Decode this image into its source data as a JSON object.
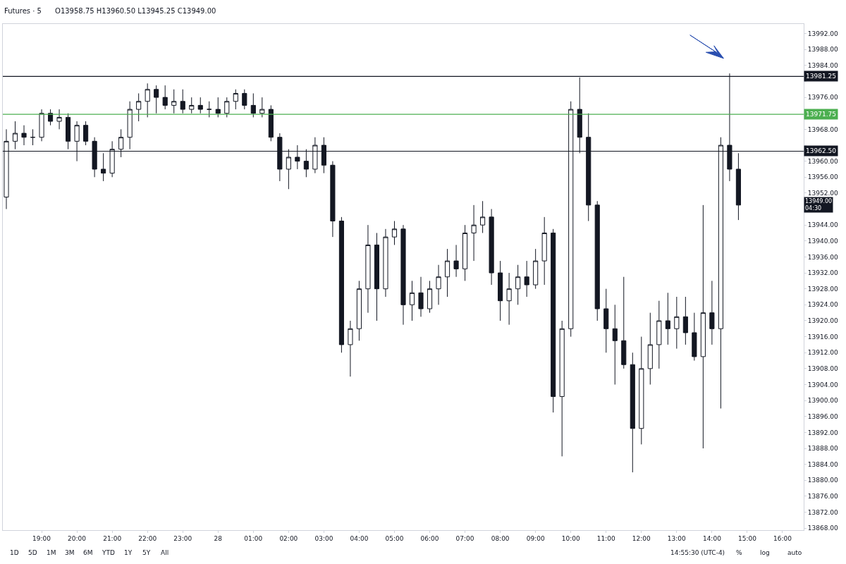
{
  "chart_data": {
    "type": "candlestick",
    "title": "Futures · 5",
    "subtitle": "O13958.75 H13960.50 L13945.25 C13949.00",
    "x": [
      "--04-27T18:00",
      "--04-27T18:15",
      "--04-27T18:30",
      "--04-27T18:45",
      "--04-27T19:00",
      "--04-27T19:15",
      "--04-27T19:30",
      "--04-27T19:45",
      "--04-27T20:00",
      "--04-27T20:15",
      "--04-27T20:30",
      "--04-27T20:45",
      "--04-27T21:00",
      "--04-27T21:15",
      "--04-27T21:30",
      "--04-27T21:45",
      "--04-27T22:00",
      "--04-27T22:15",
      "--04-27T22:30",
      "--04-27T22:45",
      "--04-27T23:00",
      "--04-27T23:15",
      "--04-27T23:30",
      "--04-27T23:45",
      "--04-28T00:00",
      "--04-28T00:15",
      "--04-28T00:30",
      "--04-28T00:45",
      "--04-28T01:00",
      "--04-28T01:15",
      "--04-28T01:30",
      "--04-28T01:45",
      "--04-28T02:00",
      "--04-28T02:15",
      "--04-28T02:30",
      "--04-28T02:45",
      "--04-28T03:00",
      "--04-28T03:15",
      "--04-28T03:30",
      "--04-28T03:45",
      "--04-28T04:00",
      "--04-28T04:15",
      "--04-28T04:30",
      "--04-28T04:45",
      "--04-28T05:00",
      "--04-28T05:15",
      "--04-28T05:30",
      "--04-28T05:45",
      "--04-28T06:00",
      "--04-28T06:15",
      "--04-28T06:30",
      "--04-28T06:45",
      "--04-28T07:00",
      "--04-28T07:15",
      "--04-28T07:30",
      "--04-28T07:45",
      "--04-28T08:00",
      "--04-28T08:15",
      "--04-28T08:30",
      "--04-28T08:45",
      "--04-28T09:00",
      "--04-28T09:15",
      "--04-28T09:30",
      "--04-28T09:45",
      "--04-28T10:00",
      "--04-28T10:15",
      "--04-28T10:30",
      "--04-28T10:45",
      "--04-28T11:00",
      "--04-28T11:15",
      "--04-28T11:30",
      "--04-28T11:45",
      "--04-28T12:00",
      "--04-28T12:15",
      "--04-28T12:30",
      "--04-28T12:45",
      "--04-28T13:00",
      "--04-28T13:15",
      "--04-28T13:30",
      "--04-28T13:45",
      "--04-28T14:00",
      "--04-28T14:15",
      "--04-28T14:30",
      "--04-28T14:45"
    ],
    "ohlc": [
      [
        13951,
        13968,
        13948,
        13965
      ],
      [
        13965,
        13970,
        13963,
        13967
      ],
      [
        13967,
        13969,
        13964,
        13966
      ],
      [
        13966,
        13968,
        13964,
        13966
      ],
      [
        13966,
        13973,
        13965,
        13972
      ],
      [
        13972,
        13973,
        13969,
        13970
      ],
      [
        13970,
        13973,
        13968,
        13971
      ],
      [
        13971,
        13972,
        13963,
        13965
      ],
      [
        13965,
        13970,
        13960,
        13969
      ],
      [
        13969,
        13970,
        13964,
        13965
      ],
      [
        13965,
        13966,
        13956,
        13958
      ],
      [
        13958,
        13962,
        13955,
        13957
      ],
      [
        13957,
        13965,
        13956,
        13963
      ],
      [
        13963,
        13968,
        13961,
        13966
      ],
      [
        13966,
        13975,
        13963,
        13973
      ],
      [
        13973,
        13977,
        13970,
        13975
      ],
      [
        13975,
        13979.5,
        13971,
        13978
      ],
      [
        13978,
        13979,
        13972,
        13976
      ],
      [
        13976,
        13979,
        13973,
        13974
      ],
      [
        13974,
        13978,
        13972,
        13975
      ],
      [
        13975,
        13978,
        13972,
        13973
      ],
      [
        13973,
        13976,
        13972,
        13974
      ],
      [
        13974,
        13976,
        13972,
        13973
      ],
      [
        13973,
        13975,
        13971,
        13973
      ],
      [
        13973,
        13976,
        13971,
        13972
      ],
      [
        13972,
        13976,
        13971,
        13975
      ],
      [
        13975,
        13978,
        13973,
        13977
      ],
      [
        13977,
        13978,
        13973,
        13974
      ],
      [
        13974,
        13977,
        13971,
        13972
      ],
      [
        13972,
        13976,
        13971,
        13973
      ],
      [
        13973,
        13974,
        13965,
        13966
      ],
      [
        13966,
        13967,
        13955,
        13958
      ],
      [
        13958,
        13963,
        13953,
        13961
      ],
      [
        13961,
        13964,
        13958,
        13960
      ],
      [
        13960,
        13963,
        13956,
        13958
      ],
      [
        13958,
        13966,
        13957,
        13964
      ],
      [
        13964,
        13966,
        13957,
        13959
      ],
      [
        13959,
        13960,
        13941,
        13945
      ],
      [
        13945,
        13946,
        13912,
        13914
      ],
      [
        13914,
        13920,
        13906,
        13918
      ],
      [
        13918,
        13930,
        13915,
        13928
      ],
      [
        13928,
        13944,
        13922,
        13939
      ],
      [
        13939,
        13942,
        13920,
        13928
      ],
      [
        13928,
        13943,
        13926,
        13941
      ],
      [
        13941,
        13945,
        13939,
        13943
      ],
      [
        13943,
        13944,
        13919,
        13924
      ],
      [
        13924,
        13930,
        13920,
        13927
      ],
      [
        13927,
        13931,
        13921,
        13923
      ],
      [
        13923,
        13930,
        13922,
        13928
      ],
      [
        13928,
        13934,
        13924,
        13931
      ],
      [
        13931,
        13938,
        13926,
        13935
      ],
      [
        13935,
        13939,
        13931,
        13933
      ],
      [
        13933,
        13944,
        13930,
        13942
      ],
      [
        13942,
        13949,
        13935,
        13944
      ],
      [
        13944,
        13950,
        13942,
        13946
      ],
      [
        13946,
        13948,
        13929,
        13932
      ],
      [
        13932,
        13935,
        13920,
        13925
      ],
      [
        13925,
        13932,
        13919,
        13928
      ],
      [
        13928,
        13934,
        13924,
        13931
      ],
      [
        13931,
        13935,
        13926,
        13929
      ],
      [
        13929,
        13938,
        13928,
        13935
      ],
      [
        13935,
        13946,
        13929,
        13942
      ],
      [
        13942,
        13943,
        13897,
        13901
      ],
      [
        13901,
        13920,
        13886,
        13918
      ],
      [
        13918,
        13975,
        13916,
        13973
      ],
      [
        13973,
        13981,
        13962,
        13966
      ],
      [
        13966,
        13972,
        13945,
        13949
      ],
      [
        13949,
        13950,
        13920,
        13923
      ],
      [
        13923,
        13928,
        13912,
        13918
      ],
      [
        13918,
        13924,
        13904,
        13915
      ],
      [
        13915,
        13931,
        13908,
        13909
      ],
      [
        13909,
        13912,
        13882,
        13893
      ],
      [
        13893,
        13916,
        13889,
        13908
      ],
      [
        13908,
        13922,
        13904,
        13914
      ],
      [
        13914,
        13925,
        13908,
        13920
      ],
      [
        13920,
        13927,
        13914,
        13918
      ],
      [
        13918,
        13926,
        13913,
        13921
      ],
      [
        13921,
        13926,
        13914,
        13917
      ],
      [
        13917,
        13922,
        13910,
        13911
      ],
      [
        13911,
        13949,
        13888,
        13922
      ],
      [
        13922,
        13930,
        13914,
        13918
      ],
      [
        13918,
        13966,
        13898,
        13964
      ],
      [
        13964,
        13982,
        13955,
        13958
      ],
      [
        13958,
        13962,
        13945.25,
        13949
      ]
    ],
    "xlim": [
      "--04-27T17:54",
      "--04-28T16:36"
    ],
    "xticks": [
      {
        "value": "--04-27T19:00",
        "label": "19:00"
      },
      {
        "value": "--04-27T20:00",
        "label": "20:00"
      },
      {
        "value": "--04-27T21:00",
        "label": "21:00"
      },
      {
        "value": "--04-27T22:00",
        "label": "22:00"
      },
      {
        "value": "--04-27T23:00",
        "label": "23:00"
      },
      {
        "value": "--04-28T00:00",
        "label": "28"
      },
      {
        "value": "--04-28T01:00",
        "label": "01:00"
      },
      {
        "value": "--04-28T02:00",
        "label": "02:00"
      },
      {
        "value": "--04-28T03:00",
        "label": "03:00"
      },
      {
        "value": "--04-28T04:00",
        "label": "04:00"
      },
      {
        "value": "--04-28T05:00",
        "label": "05:00"
      },
      {
        "value": "--04-28T06:00",
        "label": "06:00"
      },
      {
        "value": "--04-28T07:00",
        "label": "07:00"
      },
      {
        "value": "--04-28T08:00",
        "label": "08:00"
      },
      {
        "value": "--04-28T09:00",
        "label": "09:00"
      },
      {
        "value": "--04-28T10:00",
        "label": "10:00"
      },
      {
        "value": "--04-28T11:00",
        "label": "11:00"
      },
      {
        "value": "--04-28T12:00",
        "label": "12:00"
      },
      {
        "value": "--04-28T13:00",
        "label": "13:00"
      },
      {
        "value": "--04-28T14:00",
        "label": "14:00"
      },
      {
        "value": "--04-28T15:00",
        "label": "15:00"
      },
      {
        "value": "--04-28T16:00",
        "label": "16:00"
      }
    ],
    "ylim": [
      13867.5,
      13994.4
    ],
    "yticks": [
      {
        "value": 13868,
        "label": "13868.00"
      },
      {
        "value": 13872,
        "label": "13872.00"
      },
      {
        "value": 13876,
        "label": "13876.00"
      },
      {
        "value": 13880,
        "label": "13880.00"
      },
      {
        "value": 13884,
        "label": "13884.00"
      },
      {
        "value": 13888,
        "label": "13888.00"
      },
      {
        "value": 13892,
        "label": "13892.00"
      },
      {
        "value": 13896,
        "label": "13896.00"
      },
      {
        "value": 13900,
        "label": "13900.00"
      },
      {
        "value": 13904,
        "label": "13904.00"
      },
      {
        "value": 13908,
        "label": "13908.00"
      },
      {
        "value": 13912,
        "label": "13912.00"
      },
      {
        "value": 13916,
        "label": "13916.00"
      },
      {
        "value": 13920,
        "label": "13920.00"
      },
      {
        "value": 13924,
        "label": "13924.00"
      },
      {
        "value": 13928,
        "label": "13928.00"
      },
      {
        "value": 13932,
        "label": "13932.00"
      },
      {
        "value": 13936,
        "label": "13936.00"
      },
      {
        "value": 13940,
        "label": "13940.00"
      },
      {
        "value": 13944,
        "label": "13944.00"
      },
      {
        "value": 13948,
        "label": null
      },
      {
        "value": 13952,
        "label": "13952.00"
      },
      {
        "value": 13956,
        "label": "13956.00"
      },
      {
        "value": 13960,
        "label": "13960.00"
      },
      {
        "value": 13964,
        "label": null
      },
      {
        "value": 13968,
        "label": "13968.00"
      },
      {
        "value": 13972,
        "label": null
      },
      {
        "value": 13976,
        "label": "13976.00"
      },
      {
        "value": 13980,
        "label": null
      },
      {
        "value": 13984,
        "label": "13984.00"
      },
      {
        "value": 13988,
        "label": "13988.00"
      },
      {
        "value": 13992,
        "label": "13992.00"
      }
    ],
    "ref_lines": [
      {
        "axis": "y",
        "value": 13981.25,
        "label": "13981.25",
        "color": "#131722"
      },
      {
        "axis": "y",
        "value": 13971.75,
        "label": "13971.75",
        "color": "#4caf50"
      },
      {
        "axis": "y",
        "value": 13962.5,
        "label": "13962.50",
        "color": "#131722"
      }
    ],
    "annotations": [
      "13949.00\n04:30",
      "1D",
      "5D",
      "1M",
      "3M",
      "6M",
      "YTD",
      "1Y",
      "5Y",
      "All",
      "14:55:30 (UTC-4)",
      "%",
      "log",
      "auto"
    ]
  }
}
